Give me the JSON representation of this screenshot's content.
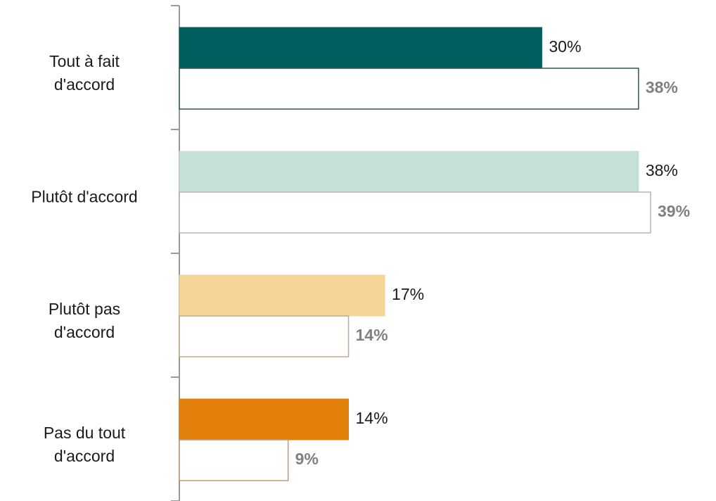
{
  "chart_data": {
    "type": "bar",
    "orientation": "horizontal",
    "categories": [
      "Tout à fait\nd'accord",
      "Plutôt d'accord",
      "Plutôt pas\nd'accord",
      "Pas du tout\nd'accord"
    ],
    "series": [
      {
        "colors": [
          "#005e5e",
          "#c4e0d8",
          "#f5d597",
          "#e3800a"
        ],
        "values": [
          30,
          38,
          17,
          14
        ],
        "value_labels": [
          "30%",
          "38%",
          "17%",
          "14%"
        ]
      },
      {
        "color": "#ffffff",
        "border_colors": [
          "#2e5458",
          "#b5b5b5",
          "#c2ac84",
          "#c39a6a"
        ],
        "values": [
          38,
          39,
          14,
          9
        ],
        "value_labels": [
          "38%",
          "39%",
          "14%",
          "9%"
        ]
      }
    ]
  }
}
